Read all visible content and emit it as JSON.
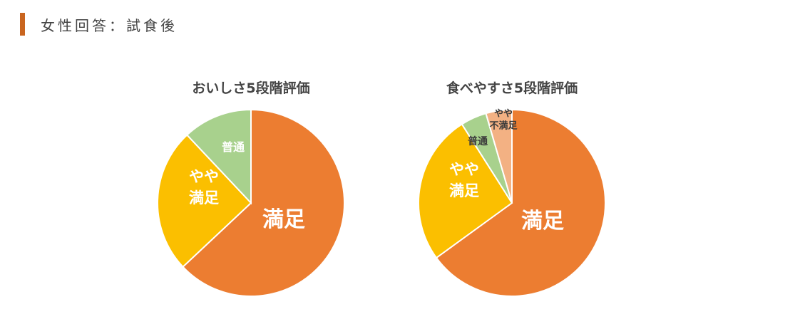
{
  "heading": {
    "title": "女性回答：試食後"
  },
  "colors": {
    "heading_bar": "#c9651f",
    "title_text": "#444444"
  },
  "chart_data": [
    {
      "type": "pie",
      "title": "おいしさ5段階評価",
      "start": "12 o'clock",
      "direction": "clockwise",
      "slices": [
        {
          "label": "満足",
          "value": 63,
          "color": "#ec7d31",
          "label_color": "#ffffff",
          "size": "large"
        },
        {
          "label": "やや満足",
          "value": 25,
          "color": "#fbbf00",
          "label_color": "#ffffff",
          "size": "medium"
        },
        {
          "label": "普通",
          "value": 12,
          "color": "#a8d18d",
          "label_color": "#ffffff",
          "size": "small"
        }
      ]
    },
    {
      "type": "pie",
      "title": "食べやすさ5段階評価",
      "start": "12 o'clock",
      "direction": "clockwise",
      "slices": [
        {
          "label": "満足",
          "value": 65,
          "color": "#ec7d31",
          "label_color": "#ffffff",
          "size": "large"
        },
        {
          "label": "やや満足",
          "value": 26,
          "color": "#fbbf00",
          "label_color": "#ffffff",
          "size": "medium"
        },
        {
          "label": "普通",
          "value": 4.5,
          "color": "#a8d18d",
          "label_color": "#3a3a3a",
          "size": "small"
        },
        {
          "label": "やや不満足",
          "value": 4.5,
          "color": "#f3b183",
          "label_color": "#3a3a3a",
          "size": "tiny"
        }
      ]
    }
  ]
}
